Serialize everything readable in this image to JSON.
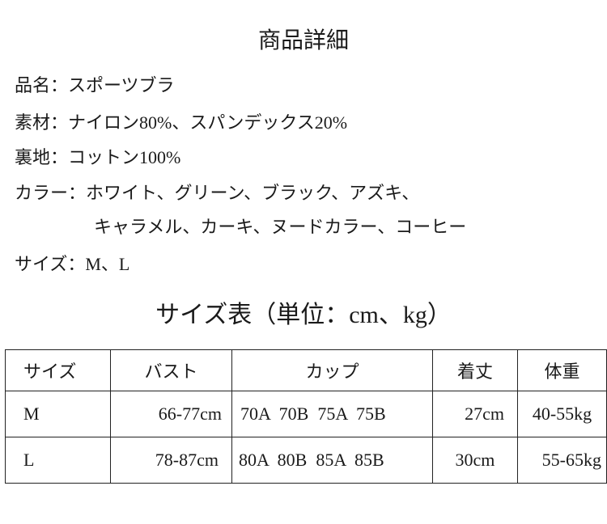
{
  "title": "商品詳細",
  "details": {
    "name": "品名：スポーツブラ",
    "material": "素材：ナイロン80%、スパンデックス20%",
    "lining": "裏地：コットン100%",
    "color_line1": "カラー：ホワイト、グリーン、ブラック、アズキ、",
    "color_line2": "キャラメル、カーキ、ヌードカラー、コーヒー",
    "size": "サイズ：M、L"
  },
  "size_chart": {
    "title": "サイズ表（単位：cm、kg）",
    "headers": [
      "サイズ",
      "バスト",
      "カップ",
      "着丈",
      "体重"
    ],
    "rows": [
      [
        "M",
        "66-77cm",
        "70A  70B  75A  75B",
        "27cm",
        "40-55kg"
      ],
      [
        "L",
        "78-87cm",
        "80A  80B  85A  85B",
        "30cm",
        "55-65kg"
      ]
    ]
  }
}
